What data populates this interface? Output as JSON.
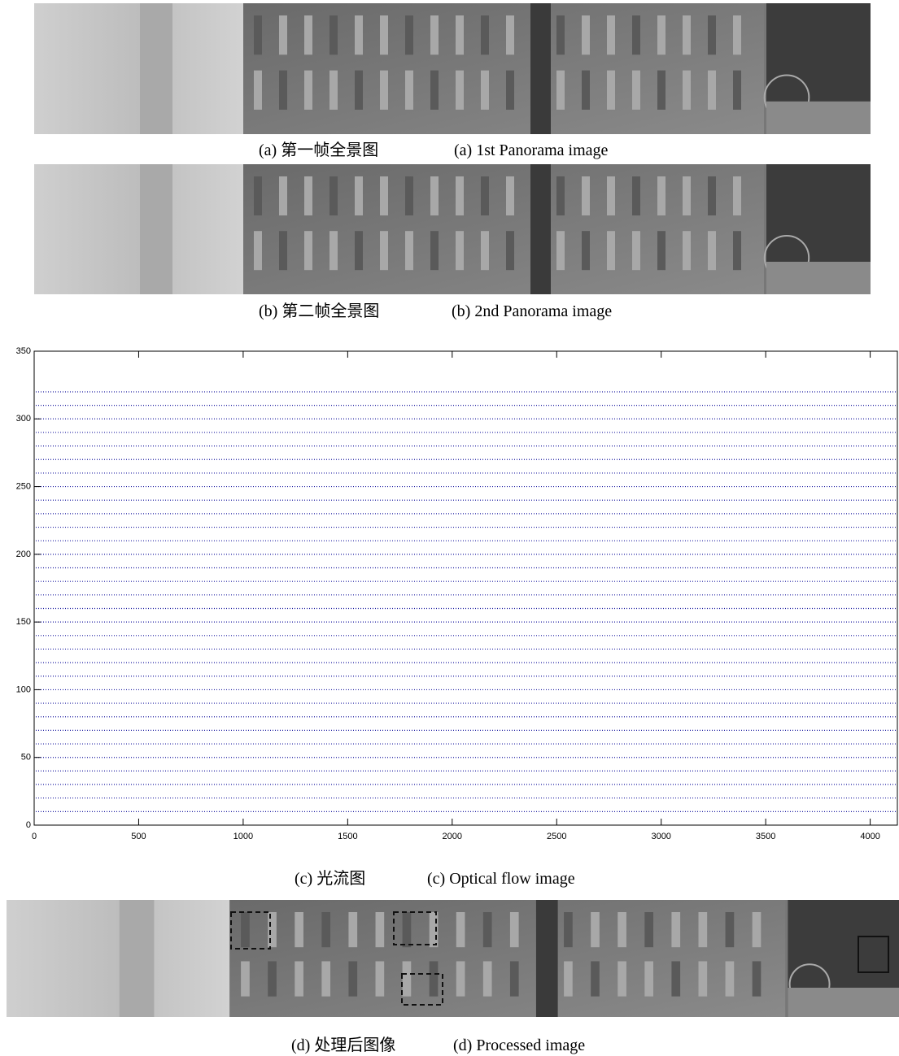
{
  "captions": [
    {
      "cn": "(a) 第一帧全景图",
      "en": "(a) 1st Panorama image"
    },
    {
      "cn": "(b) 第二帧全景图",
      "en": "(b) 2nd Panorama image"
    },
    {
      "cn": "(c) 光流图",
      "en": "(c) Optical flow image"
    },
    {
      "cn": "(d) 处理后图像",
      "en": "(d) Processed image"
    }
  ],
  "chart_data": {
    "type": "flow",
    "color": "#1a1aa0",
    "rows": [
      10,
      20,
      30,
      40,
      50,
      60,
      70,
      80,
      90,
      100,
      110,
      120,
      130,
      140,
      150,
      160,
      170,
      180,
      190,
      200,
      210,
      220,
      230,
      240,
      250,
      260,
      270,
      280,
      290,
      300,
      310,
      320
    ],
    "xlim": [
      0,
      4130
    ],
    "ylim": [
      0,
      350
    ],
    "xticks": [
      0,
      500,
      1000,
      1500,
      2000,
      2500,
      3000,
      3500,
      4000
    ],
    "yticks": [
      0,
      50,
      100,
      150,
      200,
      250,
      300,
      350
    ]
  }
}
